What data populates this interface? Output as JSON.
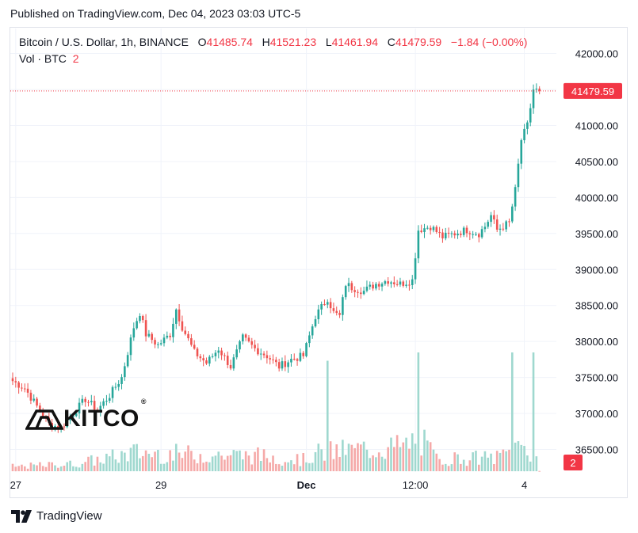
{
  "header": {
    "published": "Published on TradingView.com, Dec 04, 2023 03:03 UTC-5"
  },
  "legend": {
    "symbol": "Bitcoin / U.S. Dollar, 1h, BINANCE",
    "o_label": "O",
    "o_value": "41485.74",
    "h_label": "H",
    "h_value": "41521.23",
    "l_label": "L",
    "l_value": "41461.94",
    "c_label": "C",
    "c_value": "41479.59",
    "change": "−1.84 (−0.00%)",
    "vol_label": "Vol · BTC",
    "vol_value": "2"
  },
  "footer": {
    "brand": "TradingView"
  },
  "watermark": {
    "text": "KITCO",
    "reg": "®"
  },
  "colors": {
    "up": "#26a69a",
    "down": "#ef5350",
    "vol_up": "#9fd8cf",
    "vol_down": "#f5a9a8",
    "price_tag": "#f23645",
    "grid": "#f0f3fa",
    "axis_text": "#131722"
  },
  "chart_data": {
    "type": "candlestick",
    "title": "Bitcoin / U.S. Dollar, 1h, BINANCE",
    "ylim": [
      36200,
      42300
    ],
    "y_ticks": [
      "42000.00",
      "41500.00",
      "41000.00",
      "40500.00",
      "40000.00",
      "39500.00",
      "39000.00",
      "38500.00",
      "38000.00",
      "37500.00",
      "37000.00",
      "36500.00"
    ],
    "y_tick_values": [
      42000,
      41500,
      41000,
      40500,
      40000,
      39500,
      39000,
      38500,
      38000,
      37500,
      37000,
      36500
    ],
    "x_ticks": [
      {
        "label": "27",
        "index": 1
      },
      {
        "label": "29",
        "index": 49
      },
      {
        "label": "Dec",
        "index": 97
      },
      {
        "label": "12:00",
        "index": 133
      },
      {
        "label": "4",
        "index": 169
      }
    ],
    "last_price": 41479.59,
    "last_price_label": "41479.59",
    "last_volume": 2,
    "last_volume_label": "2",
    "anchors": [
      [
        0,
        37450
      ],
      [
        4,
        37350
      ],
      [
        8,
        37100
      ],
      [
        12,
        36850
      ],
      [
        16,
        36800
      ],
      [
        20,
        37000
      ],
      [
        24,
        37200
      ],
      [
        28,
        37050
      ],
      [
        32,
        37250
      ],
      [
        36,
        37500
      ],
      [
        40,
        38200
      ],
      [
        42,
        38400
      ],
      [
        44,
        38100
      ],
      [
        48,
        37950
      ],
      [
        52,
        38100
      ],
      [
        54,
        38450
      ],
      [
        56,
        38200
      ],
      [
        60,
        37850
      ],
      [
        64,
        37700
      ],
      [
        68,
        37900
      ],
      [
        72,
        37650
      ],
      [
        76,
        38050
      ],
      [
        80,
        37900
      ],
      [
        84,
        37800
      ],
      [
        88,
        37650
      ],
      [
        92,
        37750
      ],
      [
        96,
        37800
      ],
      [
        100,
        38350
      ],
      [
        104,
        38600
      ],
      [
        106,
        38400
      ],
      [
        108,
        38350
      ],
      [
        110,
        38800
      ],
      [
        112,
        38750
      ],
      [
        116,
        38700
      ],
      [
        120,
        38800
      ],
      [
        124,
        38850
      ],
      [
        128,
        38800
      ],
      [
        132,
        38850
      ],
      [
        134,
        39550
      ],
      [
        138,
        39600
      ],
      [
        142,
        39450
      ],
      [
        146,
        39500
      ],
      [
        150,
        39550
      ],
      [
        154,
        39500
      ],
      [
        156,
        39600
      ],
      [
        158,
        39750
      ],
      [
        160,
        39550
      ],
      [
        164,
        39650
      ],
      [
        166,
        40100
      ],
      [
        168,
        40800
      ],
      [
        170,
        41000
      ],
      [
        172,
        41500
      ],
      [
        174,
        41480
      ]
    ],
    "volume_anchors": [
      [
        0,
        45
      ],
      [
        20,
        70
      ],
      [
        36,
        150
      ],
      [
        40,
        180
      ],
      [
        60,
        160
      ],
      [
        80,
        150
      ],
      [
        96,
        110
      ],
      [
        100,
        170
      ],
      [
        110,
        200
      ],
      [
        130,
        240
      ],
      [
        134,
        320
      ],
      [
        140,
        120
      ],
      [
        160,
        130
      ],
      [
        168,
        250
      ],
      [
        174,
        100
      ]
    ]
  }
}
